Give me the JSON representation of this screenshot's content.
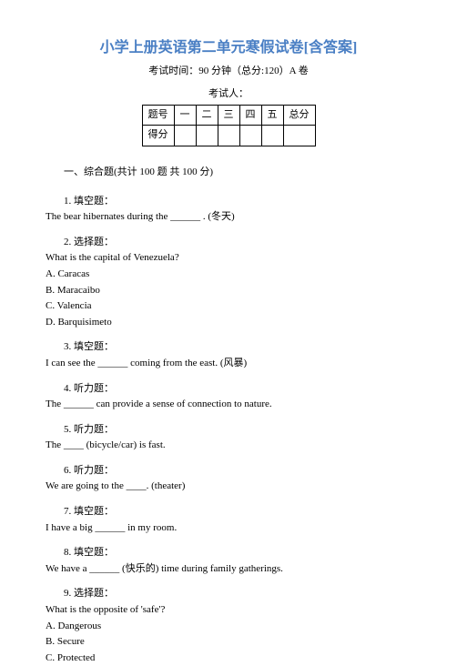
{
  "title": {
    "text": "小学上册英语第二单元寒假试卷[含答案]",
    "color": "#4a7fc4"
  },
  "subtitle": "考试时间：90 分钟（总分:120）A 卷",
  "examiner_label": "考试人：",
  "table": {
    "row1": [
      "题号",
      "一",
      "二",
      "三",
      "四",
      "五",
      "总分"
    ],
    "row2": [
      "得分",
      "",
      "",
      "",
      "",
      "",
      ""
    ]
  },
  "section_header": "一、综合题(共计 100 题 共 100 分)",
  "questions": [
    {
      "num": "1. 填空题：",
      "text": "The bear hibernates during the ______ . (冬天)"
    },
    {
      "num": "2. 选择题：",
      "text": "What is the capital of Venezuela?",
      "options": [
        "A. Caracas",
        "B. Maracaibo",
        "C. Valencia",
        "D. Barquisimeto"
      ]
    },
    {
      "num": "3. 填空题：",
      "text": "I can see the ______ coming from the east. (风暴)"
    },
    {
      "num": "4. 听力题：",
      "text": "The ______ can provide a sense of connection to nature."
    },
    {
      "num": "5. 听力题：",
      "text": "The ____ (bicycle/car) is fast."
    },
    {
      "num": "6. 听力题：",
      "text": "We are going to the ____. (theater)"
    },
    {
      "num": "7. 填空题：",
      "text": "I have a big ______ in my room."
    },
    {
      "num": "8. 填空题：",
      "text": "We have a ______ (快乐的) time during family gatherings."
    },
    {
      "num": "9. 选择题：",
      "text": "What is the opposite of 'safe'?",
      "options": [
        "A. Dangerous",
        "B. Secure",
        "C. Protected"
      ]
    }
  ]
}
